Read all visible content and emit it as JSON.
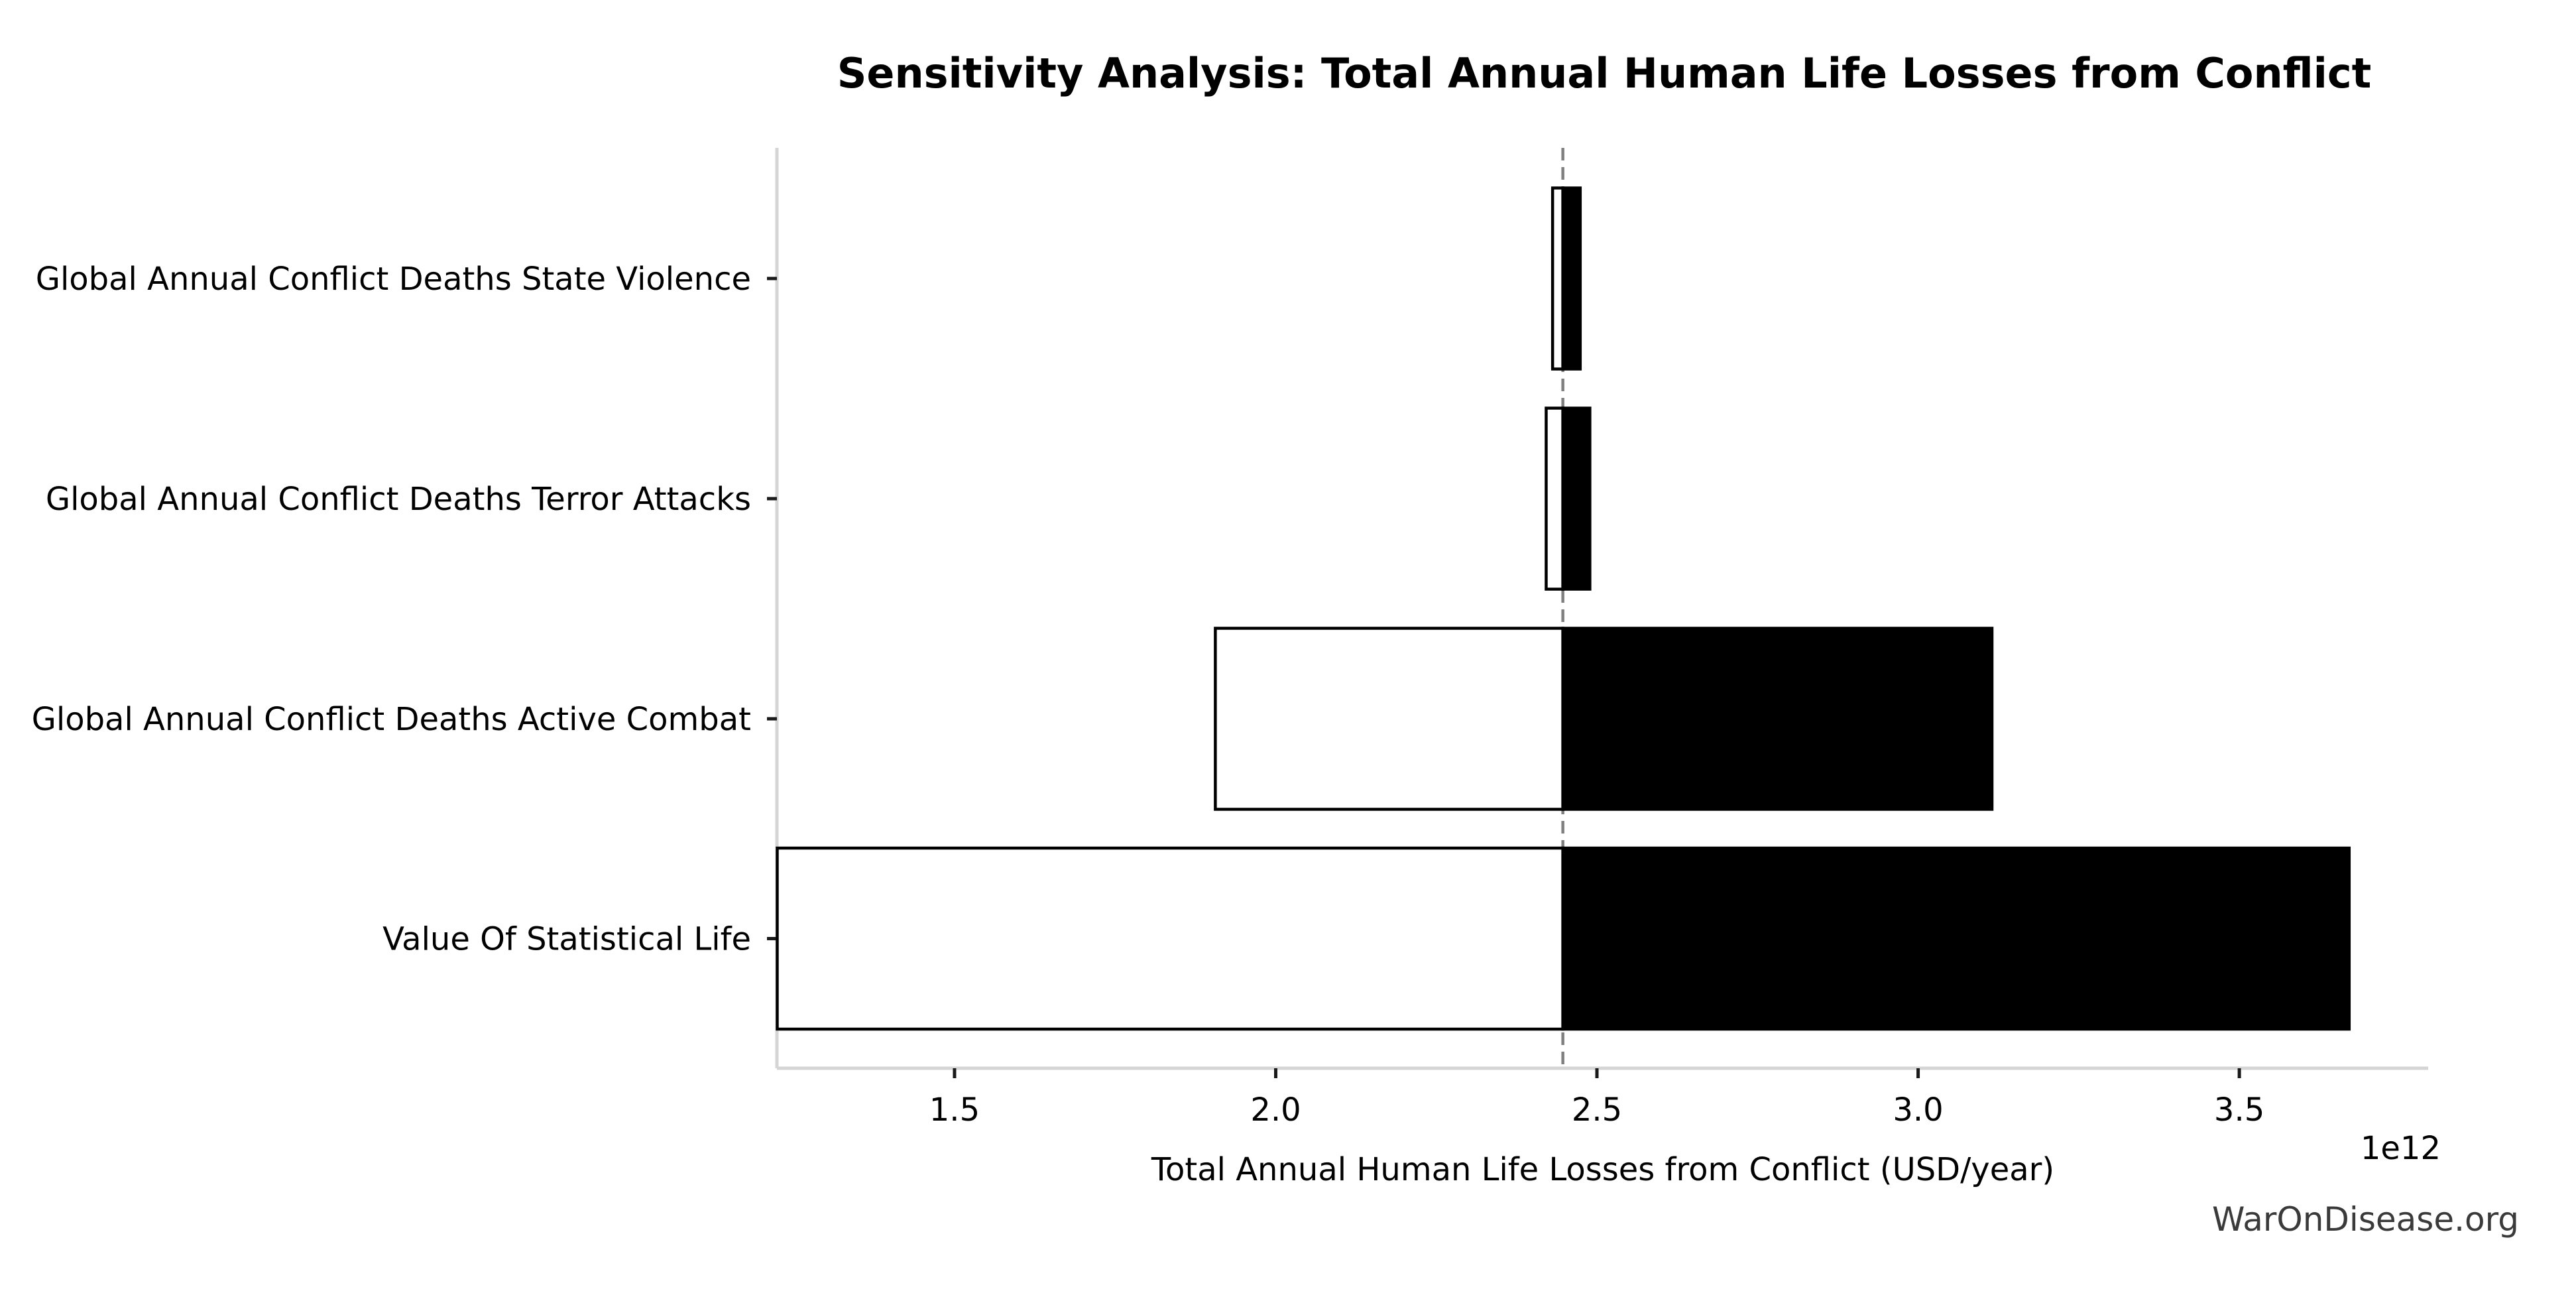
{
  "watermark": "WarOnDisease.org",
  "chart_data": {
    "type": "bar",
    "variant": "tornado-sensitivity",
    "orientation": "horizontal",
    "title": "Sensitivity Analysis: Total Annual Human Life Losses from Conflict",
    "xlabel": "Total Annual Human Life Losses from Conflict (USD/year)",
    "x_offset_label": "1e12",
    "value_units": "1e12 USD/year",
    "xlim": [
      1.2235,
      3.794
    ],
    "grid": false,
    "legend": "none",
    "baseline_value": 2.447,
    "x_ticks": [
      {
        "value": 1.5,
        "label": "1.5"
      },
      {
        "value": 2.0,
        "label": "2.0"
      },
      {
        "value": 2.5,
        "label": "2.5"
      },
      {
        "value": 3.0,
        "label": "3.0"
      },
      {
        "value": 3.5,
        "label": "3.5"
      }
    ],
    "categories": [
      "Global Annual Conflict Deaths State Violence",
      "Global Annual Conflict Deaths Terror Attacks",
      "Global Annual Conflict Deaths Active Combat",
      "Value Of Statistical Life"
    ],
    "bars": [
      {
        "label": "Global Annual Conflict Deaths State Violence",
        "low": 2.431,
        "high": 2.474
      },
      {
        "label": "Global Annual Conflict Deaths Terror Attacks",
        "low": 2.421,
        "high": 2.489
      },
      {
        "label": "Global Annual Conflict Deaths Active Combat",
        "low": 1.906,
        "high": 3.115
      },
      {
        "label": "Value Of Statistical Life",
        "low": 1.224,
        "high": 3.671
      }
    ],
    "colors": {
      "bar_low_fill": "#ffffff",
      "bar_high_fill": "#000000",
      "bar_edge": "#000000",
      "baseline_line": "#808080",
      "spine": "#d5d5d5",
      "tick_mark": "#1a1a1a",
      "text": "#000000",
      "watermark_text": "#3a3a3a"
    }
  }
}
